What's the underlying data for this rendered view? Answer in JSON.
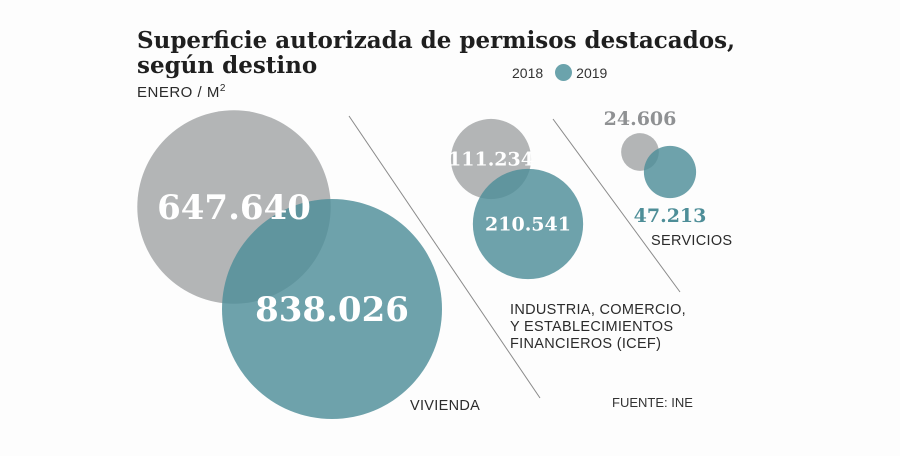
{
  "title": "Superficie autorizada de permisos destacados, según destino",
  "subtitle": "ENERO / M",
  "subtitle_sup": "2",
  "source": "FUENTE: INE",
  "colors": {
    "2018": "#9a9c9e",
    "2019": "#4e8e98"
  },
  "chart_data": {
    "type": "bubble",
    "title": "Superficie autorizada de permisos destacados, según destino",
    "unit": "ENERO / M2",
    "series": [
      {
        "name": "2018",
        "color": "#9a9c9e"
      },
      {
        "name": "2019",
        "color": "#4e8e98"
      }
    ],
    "categories": [
      {
        "label": "VIVIENDA",
        "values": {
          "2018": 647640,
          "2019": 838026
        },
        "display": {
          "2018": "647.640",
          "2019": "838.026"
        }
      },
      {
        "label": "INDUSTRIA, COMERCIO, Y ESTABLECIMIENTOS FINANCIEROS (ICEF)",
        "label_lines": [
          "INDUSTRIA, COMERCIO,",
          "Y ESTABLECIMIENTOS",
          "FINANCIEROS (ICEF)"
        ],
        "values": {
          "2018": 111234,
          "2019": 210541
        },
        "display": {
          "2018": "111.234",
          "2019": "210.541"
        }
      },
      {
        "label": "SERVICIOS",
        "values": {
          "2018": 24606,
          "2019": 47213
        },
        "display": {
          "2018": "24.606",
          "2019": "47.213"
        }
      }
    ],
    "legend": [
      "2018",
      "2019"
    ]
  }
}
